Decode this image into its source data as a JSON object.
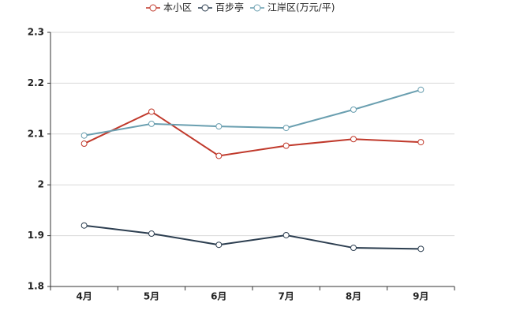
{
  "chart_data": {
    "type": "line",
    "categories": [
      "4月",
      "5月",
      "6月",
      "7月",
      "8月",
      "9月"
    ],
    "series": [
      {
        "name": "本小区",
        "color": "#c0392b",
        "values": [
          2.081,
          2.144,
          2.057,
          2.077,
          2.09,
          2.084
        ]
      },
      {
        "name": "百步亭",
        "color": "#2c3e50",
        "values": [
          1.92,
          1.904,
          1.882,
          1.901,
          1.876,
          1.874
        ]
      },
      {
        "name": "江岸区(万元/平)",
        "color": "#6a9fb0",
        "values": [
          2.097,
          2.12,
          2.115,
          2.112,
          2.148,
          2.187
        ]
      }
    ],
    "ylim": [
      1.8,
      2.3
    ],
    "yticks": [
      1.8,
      1.9,
      2,
      2.1,
      2.2,
      2.3
    ],
    "grid": true,
    "legend": "top"
  }
}
